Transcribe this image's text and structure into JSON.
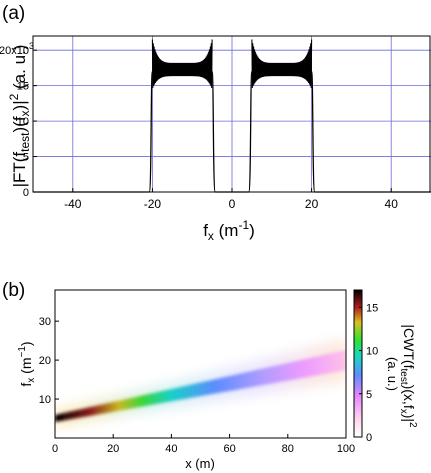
{
  "chart_data": [
    {
      "type": "line",
      "panel_label": "(a)",
      "xlabel_main": "f",
      "xlabel_sub": "x",
      "xlabel_unit": " (m",
      "xlabel_unit_exp": "-1",
      "xlabel_close": ")",
      "ylabel_parts": [
        "|FT(f",
        "test",
        ")(f",
        "x",
        ")|",
        "2",
        " (a. u.)"
      ],
      "xlim": [
        -50,
        50
      ],
      "ylim": [
        0,
        22000
      ],
      "x_ticks": [
        -40,
        -20,
        0,
        20,
        40
      ],
      "x_tick_labels": [
        "-40",
        "-20",
        "0",
        "20",
        "40"
      ],
      "y_ticks": [
        0,
        5000,
        10000,
        15000,
        20000
      ],
      "y_tick_labels": [
        "0",
        "5",
        "10",
        "15",
        "20x10"
      ],
      "y_exponent": "3",
      "grid": true,
      "band_regions": [
        [
          -20,
          -5
        ],
        [
          5,
          20
        ]
      ],
      "band_mean": 17000,
      "band_edge_peak": 21500
    },
    {
      "type": "heatmap",
      "panel_label": "(b)",
      "xlabel": "x (m)",
      "ylabel_main": "f",
      "ylabel_sub": "x",
      "ylabel_unit": " (m",
      "ylabel_unit_exp": "−1",
      "ylabel_close": ")",
      "xlim": [
        0,
        100
      ],
      "ylim": [
        0,
        38
      ],
      "x_ticks": [
        0,
        20,
        40,
        60,
        80,
        100
      ],
      "x_tick_labels": [
        "0",
        "20",
        "40",
        "60",
        "80",
        "100"
      ],
      "y_ticks": [
        10,
        20,
        30
      ],
      "y_tick_labels": [
        "10",
        "20",
        "30"
      ],
      "ridge": {
        "x": [
          0,
          100
        ],
        "y": [
          5,
          20
        ]
      },
      "colorbar": {
        "range": [
          0,
          17
        ],
        "ticks": [
          0,
          5,
          10,
          15
        ],
        "tick_labels": [
          "0",
          "5",
          "10",
          "15"
        ],
        "label_parts": [
          "|CWT(f",
          "test",
          ")(x,f",
          "x",
          ")|",
          "2"
        ],
        "label_line2": "(a. u.)"
      }
    }
  ],
  "colors": {
    "grid": "#6b6bdc",
    "line": "#000000",
    "background": "#ffffff"
  }
}
